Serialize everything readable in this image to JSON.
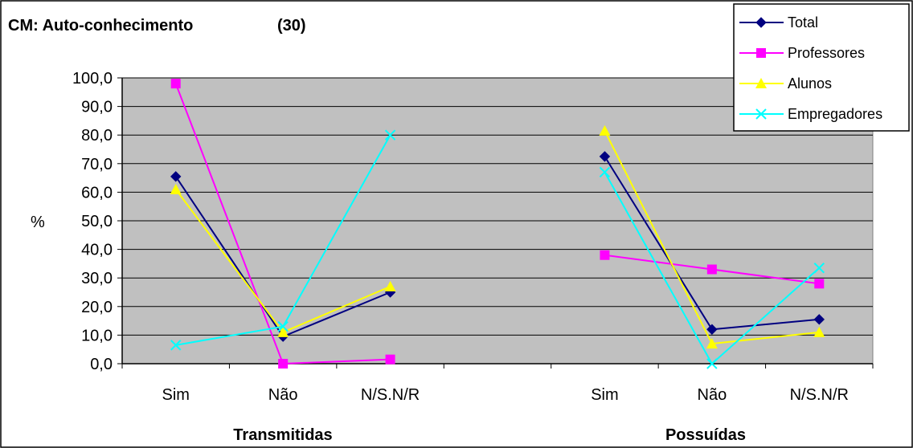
{
  "chart_data": {
    "type": "line",
    "title": "CM: Auto-conhecimento",
    "title_number": "(30)",
    "ylabel": "%",
    "ylim": [
      0,
      100
    ],
    "ytick_step": 10,
    "ytick_labels": [
      "0,0",
      "10,0",
      "20,0",
      "30,0",
      "40,0",
      "50,0",
      "60,0",
      "70,0",
      "80,0",
      "90,0",
      "100,0"
    ],
    "categories": [
      "Sim",
      "Não",
      "N/S.N/R",
      "",
      "Sim",
      "Não",
      "N/S.N/R"
    ],
    "groups": [
      {
        "label": "Transmitidas"
      },
      {
        "label": "Possuídas"
      }
    ],
    "grid": true,
    "legend_position": "top-right",
    "plot_background": "#c0c0c0",
    "series": [
      {
        "name": "Total",
        "color": "#000080",
        "marker": "diamond",
        "values": [
          65.5,
          9.5,
          25.0,
          null,
          72.5,
          12.0,
          15.5
        ]
      },
      {
        "name": "Professores",
        "color": "#ff00ff",
        "marker": "square",
        "values": [
          98.0,
          0.0,
          1.5,
          null,
          38.0,
          33.0,
          28.0
        ]
      },
      {
        "name": "Alunos",
        "color": "#ffff00",
        "marker": "triangle",
        "values": [
          61.0,
          11.0,
          27.0,
          null,
          81.5,
          7.0,
          11.0
        ]
      },
      {
        "name": "Empregadores",
        "color": "#00ffff",
        "marker": "x",
        "values": [
          6.5,
          13.0,
          80.0,
          null,
          67.0,
          0.0,
          33.5
        ]
      }
    ]
  }
}
